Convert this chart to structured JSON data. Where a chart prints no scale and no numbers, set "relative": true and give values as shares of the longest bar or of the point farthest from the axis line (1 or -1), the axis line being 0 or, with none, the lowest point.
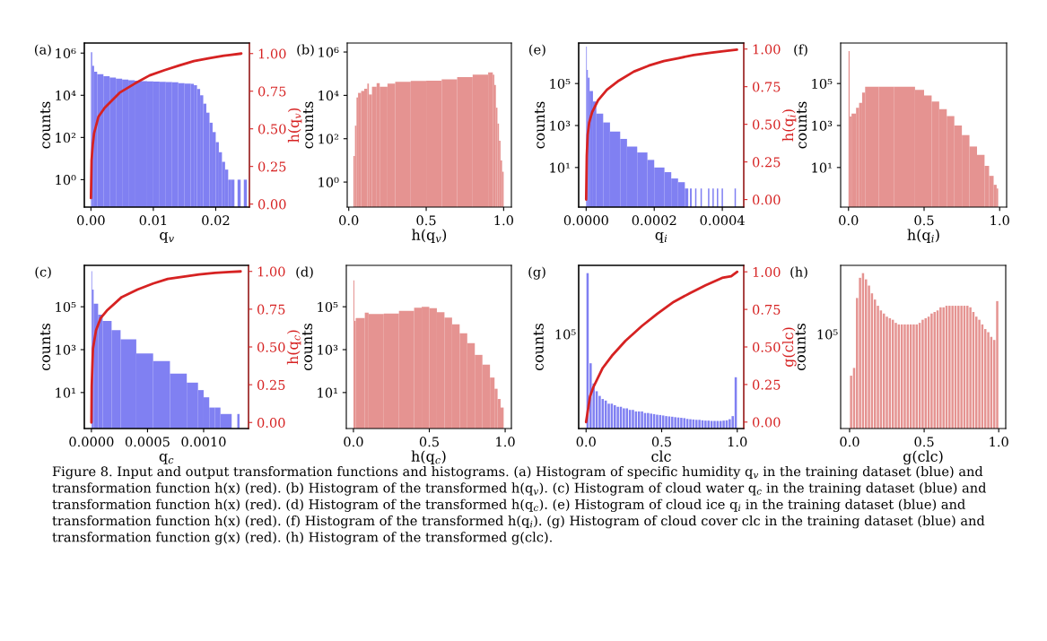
{
  "chart_data": [
    {
      "type": "histogram",
      "title": "(a)",
      "xlabel": "q$_{v}$",
      "ylabel": "counts",
      "y2label": "h(q$_{v}$)",
      "log": "y",
      "xlim": [
        -0.00106,
        0.0254
      ],
      "ylim": [
        0.05,
        3000000
      ],
      "y2lim": [
        -0.02,
        1.07
      ],
      "xticks": [
        {
          "value": 0,
          "label": "0.00"
        },
        {
          "value": 0.01,
          "label": "0.01"
        },
        {
          "value": 0.02,
          "label": "0.02"
        }
      ],
      "yticks": [
        {
          "value": 1,
          "label": "10⁰"
        },
        {
          "value": 100,
          "label": "10²"
        },
        {
          "value": 10000,
          "label": "10⁴"
        },
        {
          "value": 1000000,
          "label": "10⁶"
        }
      ],
      "y2ticks": [
        {
          "value": 0,
          "label": "0.00"
        },
        {
          "value": 0.25,
          "label": "0.25"
        },
        {
          "value": 0.5,
          "label": "0.50"
        },
        {
          "value": 0.75,
          "label": "0.75"
        },
        {
          "value": 1,
          "label": "1.00"
        }
      ],
      "series": [
        {
          "color": "#8080f2",
          "bins": [
            0,
            0.0002,
            0.0005,
            0.001,
            0.002,
            0.003,
            0.004,
            0.005,
            0.006,
            0.007,
            0.008,
            0.009,
            0.01,
            0.011,
            0.012,
            0.013,
            0.014,
            0.015,
            0.016,
            0.0165,
            0.017,
            0.0175,
            0.018,
            0.0185,
            0.019,
            0.0195,
            0.02,
            0.0205,
            0.021,
            0.0215,
            0.022,
            0.0225,
            0.023,
            0.0235,
            0.024,
            0.0245,
            0.025
          ],
          "values": [
            1100000,
            250000,
            130000,
            100000,
            80000,
            70000,
            62000,
            56000,
            52000,
            49000,
            47000,
            46000,
            45000,
            44000,
            43000,
            41000,
            38000,
            36000,
            35000,
            30000,
            20000,
            10000,
            4000,
            1500,
            500,
            180,
            60,
            20,
            7,
            3,
            1,
            1,
            null,
            1,
            null,
            1
          ]
        },
        {
          "type": "line",
          "axis": "y2",
          "color": "#d62222",
          "x": [
            0,
            0.0001,
            0.0003,
            0.0005,
            0.0012,
            0.0022,
            0.0046,
            0.007,
            0.0094,
            0.0118,
            0.0141,
            0.0165,
            0.019,
            0.0213,
            0.0241
          ],
          "values": [
            0.04,
            0.29,
            0.4,
            0.47,
            0.58,
            0.64,
            0.74,
            0.8,
            0.855,
            0.89,
            0.92,
            0.95,
            0.97,
            0.986,
            1.0
          ]
        }
      ],
      "annotations": [
        "Figure 8. Input and output transformation functions and histograms. (a) Histogram of specific humidity q$_{v}$ in the training dataset (blue) and transformation function h(x) (red). (b) Histogram of the transformed h(q$_{v}$). (c) Histogram of cloud water q$_{c}$ in the training dataset (blue) and transformation function h(x) (red). (d) Histogram of the transformed h(q$_{c}$). (e) Histogram of cloud ice q$_{i}$ in the training dataset (blue) and transformation function h(x) (red). (f) Histogram of the transformed h(q$_{i}$). (g) Histogram of cloud cover clc in the training dataset (blue) and transformation function g(x) (red). (h) Histogram of the transformed g(clc)."
      ]
    },
    {
      "type": "histogram",
      "title": "(b)",
      "xlabel": "h(q$_{v}$)",
      "ylabel": "counts",
      "log": "y",
      "xlim": [
        -0.01,
        1.05
      ],
      "ylim": [
        0.07,
        2600000
      ],
      "xticks": [
        {
          "value": 0,
          "label": "0.0"
        },
        {
          "value": 0.5,
          "label": "0.5"
        },
        {
          "value": 1,
          "label": "1.0"
        }
      ],
      "yticks": [
        {
          "value": 1,
          "label": "10⁰"
        },
        {
          "value": 100,
          "label": "10²"
        },
        {
          "value": 10000,
          "label": "10⁴"
        },
        {
          "value": 1000000,
          "label": "10⁶"
        }
      ],
      "color": "#e59391",
      "bins": [
        0.03,
        0.04,
        0.05,
        0.06,
        0.08,
        0.1,
        0.12,
        0.13,
        0.15,
        0.18,
        0.2,
        0.25,
        0.3,
        0.4,
        0.5,
        0.6,
        0.7,
        0.8,
        0.9,
        0.93,
        0.94,
        0.95,
        0.96,
        0.97,
        0.98,
        0.99,
        1.0
      ],
      "values": [
        16,
        400,
        8000,
        13000,
        16000,
        20000,
        35000,
        11000,
        25000,
        37000,
        25000,
        35000,
        42000,
        46000,
        48000,
        55000,
        70000,
        90000,
        115000,
        90000,
        30000,
        2700,
        500,
        80,
        10,
        3
      ]
    },
    {
      "type": "histogram",
      "title": "(c)",
      "xlabel": "q$_{c}$",
      "ylabel": "counts",
      "y2label": "h(q$_{c}$)",
      "log": "y",
      "xlim": [
        -6.3e-05,
        0.0014
      ],
      "ylim": [
        0.21,
        8500000
      ],
      "y2lim": [
        -0.04,
        1.04
      ],
      "xticks": [
        {
          "value": 0,
          "label": "0.0000"
        },
        {
          "value": 0.0005,
          "label": "0.0005"
        },
        {
          "value": 0.001,
          "label": "0.0010"
        }
      ],
      "yticks": [
        {
          "value": 10,
          "label": "10¹"
        },
        {
          "value": 1000,
          "label": "10³"
        },
        {
          "value": 100000,
          "label": "10⁵"
        }
      ],
      "y2ticks": [
        {
          "value": 0,
          "label": "0.00"
        },
        {
          "value": 0.25,
          "label": "0.25"
        },
        {
          "value": 0.5,
          "label": "0.50"
        },
        {
          "value": 0.75,
          "label": "0.75"
        },
        {
          "value": 1,
          "label": "1.00"
        }
      ],
      "series": [
        {
          "color": "#8080f2",
          "bins": [
            0,
            6e-06,
            2e-05,
            6e-05,
            0.0001,
            0.00018,
            0.00026,
            0.0004,
            0.00055,
            0.0007,
            0.00085,
            0.00095,
            0.001,
            0.00105,
            0.0011,
            0.00115,
            0.0012,
            0.00125,
            0.0013,
            0.00132
          ],
          "values": [
            4600000,
            630000,
            140000,
            43000,
            22000,
            8200,
            3000,
            670,
            290,
            76,
            29,
            13,
            6,
            2,
            2,
            1,
            1,
            null,
            1
          ]
        },
        {
          "type": "line",
          "axis": "y2",
          "color": "#d62222",
          "x": [
            0,
            2.7e-06,
            1.4e-05,
            4.1e-05,
            8.2e-05,
            0.000137,
            0.00027,
            0.00041,
            0.00055,
            0.00068,
            0.00082,
            0.00096,
            0.0011,
            0.00123,
            0.00133
          ],
          "values": [
            0,
            0.24,
            0.49,
            0.61,
            0.69,
            0.74,
            0.83,
            0.88,
            0.92,
            0.95,
            0.965,
            0.98,
            0.99,
            0.996,
            1.0
          ]
        }
      ]
    },
    {
      "type": "histogram",
      "title": "(d)",
      "xlabel": "h(q$_{c}$)",
      "ylabel": "counts",
      "log": "y",
      "xlim": [
        -0.047,
        1.041
      ],
      "ylim": [
        0.21,
        8500000
      ],
      "xticks": [
        {
          "value": 0,
          "label": "0.0"
        },
        {
          "value": 0.5,
          "label": "0.5"
        },
        {
          "value": 1,
          "label": "1.0"
        }
      ],
      "yticks": [
        {
          "value": 10,
          "label": "10¹"
        },
        {
          "value": 1000,
          "label": "10³"
        },
        {
          "value": 100000,
          "label": "10⁵"
        }
      ],
      "color": "#e59391",
      "bins": [
        0,
        0.006,
        0.015,
        0.075,
        0.1,
        0.2,
        0.3,
        0.4,
        0.45,
        0.5,
        0.55,
        0.6,
        0.65,
        0.7,
        0.75,
        0.8,
        0.85,
        0.9,
        0.93,
        0.95,
        0.97,
        0.99
      ],
      "values": [
        1700000,
        22000,
        30000,
        53000,
        46000,
        48000,
        65000,
        90000,
        100000,
        85000,
        55000,
        31000,
        15000,
        5800,
        2000,
        570,
        200,
        50,
        15,
        5,
        2
      ]
    },
    {
      "type": "histogram",
      "title": "(e)",
      "xlabel": "q$_{i}$",
      "ylabel": "counts",
      "y2label": "h(q$_{i}$)",
      "log": "y",
      "xlim": [
        -2.2e-05,
        0.000463
      ],
      "ylim": [
        0.13,
        8500000
      ],
      "y2lim": [
        -0.05,
        1.04
      ],
      "xticks": [
        {
          "value": 0,
          "label": "0.0000"
        },
        {
          "value": 0.0002,
          "label": "0.0002"
        },
        {
          "value": 0.0004,
          "label": "0.0004"
        }
      ],
      "yticks": [
        {
          "value": 10,
          "label": "10¹"
        },
        {
          "value": 1000,
          "label": "10³"
        },
        {
          "value": 100000,
          "label": "10⁵"
        }
      ],
      "y2ticks": [
        {
          "value": 0,
          "label": "0.00"
        },
        {
          "value": 0.25,
          "label": "0.25"
        },
        {
          "value": 0.5,
          "label": "0.50"
        },
        {
          "value": 0.75,
          "label": "0.75"
        },
        {
          "value": 1,
          "label": "1.00"
        }
      ],
      "series": [
        {
          "color": "#8080f2",
          "bins": [
            0,
            2e-06,
            5e-06,
            1e-05,
            2e-05,
            3e-05,
            5e-05,
            7e-05,
            0.0001,
            0.00012,
            0.00015,
            0.00018,
            0.0002,
            0.00023,
            0.00025,
            0.00027,
            0.00029,
            0.0003,
            0.000305,
            0.00031,
            0.00032,
            0.000324,
            0.000336,
            0.00034,
            0.000358,
            0.000362,
            0.000371,
            0.000375,
            0.000384,
            0.000388,
            0.000398,
            0.000402,
            0.000436,
            0.00044
          ],
          "values": [
            5800000,
            440000,
            190000,
            44000,
            14000,
            3700,
            1400,
            520,
            230,
            100,
            52,
            23,
            10,
            6,
            3,
            2,
            1,
            null,
            1,
            null,
            1,
            null,
            1,
            null,
            1,
            null,
            1,
            null,
            1,
            null,
            1,
            null,
            1
          ]
        },
        {
          "type": "line",
          "axis": "y2",
          "color": "#d62222",
          "x": [
            0,
            1.8e-06,
            4.4e-06,
            8.8e-06,
            1.75e-05,
            3.5e-05,
            6.1e-05,
            9.6e-05,
            0.00014,
            0.000184,
            0.000228,
            0.000272,
            0.000316,
            0.00036,
            0.000403,
            0.000443
          ],
          "values": [
            0,
            0.29,
            0.43,
            0.51,
            0.58,
            0.66,
            0.73,
            0.79,
            0.85,
            0.89,
            0.92,
            0.94,
            0.96,
            0.974,
            0.986,
            0.996
          ]
        }
      ]
    },
    {
      "type": "histogram",
      "title": "(f)",
      "xlabel": "h(q$_{i}$)",
      "ylabel": "counts",
      "log": "y",
      "xlim": [
        -0.052,
        1.046
      ],
      "ylim": [
        0.13,
        8500000
      ],
      "xticks": [
        {
          "value": 0,
          "label": "0.0"
        },
        {
          "value": 0.5,
          "label": "0.5"
        },
        {
          "value": 1,
          "label": "1.0"
        }
      ],
      "yticks": [
        {
          "value": 10,
          "label": "10¹"
        },
        {
          "value": 1000,
          "label": "10³"
        },
        {
          "value": 100000,
          "label": "10⁵"
        }
      ],
      "color": "#e59391",
      "bins": [
        0,
        0.008,
        0.02,
        0.05,
        0.07,
        0.09,
        0.11,
        0.2,
        0.3,
        0.44,
        0.5,
        0.55,
        0.6,
        0.65,
        0.7,
        0.75,
        0.8,
        0.85,
        0.9,
        0.93,
        0.96,
        0.98,
        0.99
      ],
      "values": [
        3500000,
        2700,
        3700,
        7000,
        12000,
        37000,
        70000,
        70000,
        70000,
        50000,
        27000,
        14000,
        6000,
        2800,
        1000,
        350,
        100,
        40,
        12,
        4,
        1.5,
        1
      ]
    },
    {
      "type": "bar",
      "title": "(g)",
      "xlabel": "clc",
      "ylabel": "counts",
      "y2label": "g(clc)",
      "relative": true,
      "xlim": [
        -0.049,
        1.043
      ],
      "y2lim": [
        -0.043,
        1.043
      ],
      "xticks": [
        {
          "value": 0,
          "label": "0.0"
        },
        {
          "value": 0.5,
          "label": "0.5"
        },
        {
          "value": 1,
          "label": "1.0"
        }
      ],
      "y2ticks": [
        {
          "value": 0,
          "label": "0.00"
        },
        {
          "value": 0.25,
          "label": "0.25"
        },
        {
          "value": 0.5,
          "label": "0.50"
        },
        {
          "value": 0.75,
          "label": "0.75"
        },
        {
          "value": 1,
          "label": "1.00"
        }
      ],
      "annotations": [
        "10⁵"
      ],
      "color": "#8080f2",
      "x": [
        0.01,
        0.03,
        0.05,
        0.07,
        0.09,
        0.11,
        0.13,
        0.15,
        0.17,
        0.19,
        0.21,
        0.23,
        0.25,
        0.27,
        0.29,
        0.31,
        0.33,
        0.35,
        0.37,
        0.39,
        0.41,
        0.43,
        0.45,
        0.47,
        0.49,
        0.51,
        0.53,
        0.55,
        0.57,
        0.59,
        0.61,
        0.63,
        0.65,
        0.67,
        0.69,
        0.71,
        0.73,
        0.75,
        0.77,
        0.79,
        0.81,
        0.83,
        0.85,
        0.87,
        0.89,
        0.91,
        0.93,
        0.95,
        0.97,
        0.99
      ],
      "values": [
        1,
        0.42,
        0.29,
        0.24,
        0.21,
        0.19,
        0.18,
        0.16,
        0.16,
        0.15,
        0.14,
        0.14,
        0.13,
        0.13,
        0.12,
        0.12,
        0.11,
        0.11,
        0.11,
        0.1,
        0.1,
        0.096,
        0.093,
        0.089,
        0.087,
        0.084,
        0.08,
        0.078,
        0.076,
        0.073,
        0.071,
        0.069,
        0.067,
        0.062,
        0.06,
        0.058,
        0.056,
        0.056,
        0.053,
        0.051,
        0.051,
        0.049,
        0.049,
        0.049,
        0.049,
        0.051,
        0.053,
        0.06,
        0.08,
        0.33
      ],
      "series": [
        {
          "type": "line",
          "axis": "y2",
          "color": "#d62222",
          "x": [
            0,
            0.026,
            0.047,
            0.11,
            0.17,
            0.26,
            0.37,
            0.47,
            0.58,
            0.69,
            0.79,
            0.9,
            0.96,
            1.0
          ],
          "values": [
            0,
            0.17,
            0.23,
            0.36,
            0.44,
            0.54,
            0.64,
            0.72,
            0.8,
            0.86,
            0.91,
            0.96,
            0.97,
            1.0
          ]
        }
      ]
    },
    {
      "type": "bar",
      "title": "(h)",
      "xlabel": "g(clc)",
      "ylabel": "counts",
      "relative": true,
      "xlim": [
        -0.06,
        1.047
      ],
      "xticks": [
        {
          "value": 0,
          "label": "0.0"
        },
        {
          "value": 0.5,
          "label": "0.5"
        },
        {
          "value": 1,
          "label": "1.0"
        }
      ],
      "annotations": [
        "10⁵"
      ],
      "color": "#e59391",
      "x": [
        0.01,
        0.03,
        0.05,
        0.07,
        0.09,
        0.11,
        0.13,
        0.15,
        0.17,
        0.19,
        0.21,
        0.23,
        0.25,
        0.27,
        0.29,
        0.31,
        0.33,
        0.35,
        0.37,
        0.39,
        0.41,
        0.43,
        0.45,
        0.47,
        0.49,
        0.51,
        0.53,
        0.55,
        0.57,
        0.59,
        0.61,
        0.63,
        0.65,
        0.67,
        0.69,
        0.71,
        0.73,
        0.75,
        0.77,
        0.79,
        0.81,
        0.83,
        0.85,
        0.87,
        0.89,
        0.91,
        0.93,
        0.95,
        0.97,
        0.99
      ],
      "values": [
        0.34,
        0.39,
        0.84,
        0.97,
        1,
        0.96,
        0.92,
        0.87,
        0.83,
        0.79,
        0.76,
        0.74,
        0.72,
        0.71,
        0.7,
        0.68,
        0.67,
        0.67,
        0.67,
        0.67,
        0.67,
        0.67,
        0.67,
        0.68,
        0.7,
        0.71,
        0.72,
        0.74,
        0.75,
        0.76,
        0.78,
        0.78,
        0.79,
        0.79,
        0.79,
        0.79,
        0.79,
        0.79,
        0.79,
        0.79,
        0.78,
        0.75,
        0.72,
        0.7,
        0.67,
        0.64,
        0.62,
        0.59,
        0.57,
        0.82
      ]
    }
  ]
}
